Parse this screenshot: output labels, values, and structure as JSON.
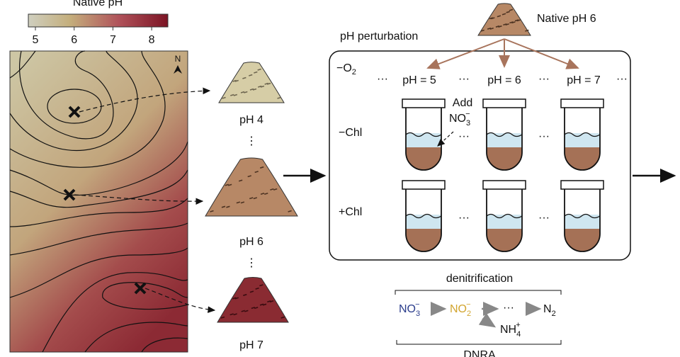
{
  "colorbar": {
    "title": "Native pH",
    "ticks": [
      5,
      6,
      7,
      8
    ]
  },
  "map": {
    "compass": "N"
  },
  "samples": [
    {
      "label": "pH 4"
    },
    {
      "label": "pH 6"
    },
    {
      "label": "pH 7"
    }
  ],
  "ellipsis": "⋮",
  "native": "Native pH 6",
  "perturbation": {
    "title": "pH perturbation",
    "oxygen": {
      "text": "−O",
      "sub": "2"
    },
    "columns": [
      "pH = 5",
      "pH = 6",
      "pH = 7"
    ],
    "dots": "···",
    "add": "Add",
    "nitrate": {
      "text": "NO",
      "sub": "3",
      "sup": "−"
    },
    "rows": [
      "−Chl",
      "+Chl"
    ]
  },
  "pathway": {
    "top": "denitrification",
    "species": [
      {
        "text": "NO",
        "sub": "3",
        "sup": "−",
        "color": "#2b3d8c"
      },
      {
        "text": "NO",
        "sub": "2",
        "sup": "−",
        "color": "#d2a530"
      },
      {
        "text": "···",
        "color": "#111111"
      },
      {
        "text": "N",
        "sub": "2",
        "color": "#111111"
      },
      {
        "text": "NH",
        "sub": "4",
        "sup": "+",
        "color": "#111111"
      }
    ],
    "bottom": "DNRA"
  }
}
